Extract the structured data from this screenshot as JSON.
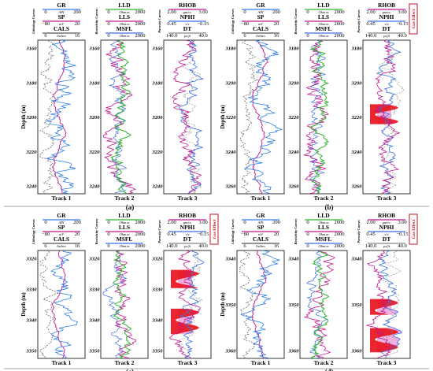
{
  "header_labels": {
    "gr": "GR",
    "api": "API",
    "sp": "SP",
    "mv": "mV",
    "cals": "CALS",
    "inches": "Inches",
    "lld": "LLD",
    "lls": "LLS",
    "msfl": "MSFL",
    "ohmm": "Ohm.m",
    "rhob": "RHOB",
    "gcm3": "gm/cc",
    "nphi": "NPHI",
    "vv": "v/v",
    "dt": "DT",
    "usft": "µs/ft",
    "lithology_curves": "Lithology Curves",
    "resistivity_curves": "Resistivity Curves",
    "porosity_curves": "Porosity Curves",
    "depth_axis": "Depth (m)",
    "gas_effect": "Gas Effect"
  },
  "ranges": {
    "gr": [
      "0",
      "200"
    ],
    "sp": [
      "−80",
      "20"
    ],
    "cals": [
      "6",
      "16"
    ],
    "res": [
      "0",
      "2000"
    ],
    "rhob": [
      "2.00",
      "3.00"
    ],
    "nphi": [
      "0.45",
      "−0.15"
    ],
    "dt": [
      "140.0",
      "40.0"
    ]
  },
  "panels": [
    {
      "id": "a",
      "caption": "(a)",
      "has_gas_label": false,
      "depth_ticks": [
        "3160",
        "3180",
        "3200",
        "3220",
        "3240"
      ],
      "track_labels": [
        "Track 1",
        "Track 2",
        "Track 3"
      ]
    },
    {
      "id": "b",
      "caption": "(b)",
      "has_gas_label": true,
      "depth_ticks": [
        "3180",
        "3200",
        "3220",
        "3240",
        "3260"
      ],
      "track_labels": [
        "Track 1",
        "Track 2",
        "Track 3"
      ]
    },
    {
      "id": "c",
      "caption": "(c)",
      "has_gas_label": true,
      "depth_ticks": [
        "3320",
        "3330",
        "3340",
        "3350"
      ],
      "track_labels": [
        "Track 1",
        "Track 2",
        "Track 3"
      ]
    },
    {
      "id": "d",
      "caption": "(d)",
      "has_gas_label": true,
      "depth_ticks": [
        "3340",
        "3350",
        "3360"
      ],
      "track_labels": [
        "Track 1",
        "Track 2",
        "Track 3"
      ]
    }
  ],
  "colors": {
    "gr": "#2f7ee8",
    "sp": "#c2188e",
    "cals": "#555555",
    "lld": "#2db32d",
    "lls": "#c2188e",
    "msfl": "#3a6fe0",
    "rhob": "#c2188e",
    "nphi": "#3a6fe0",
    "dt": "#888888",
    "gas_fill": "#e8101a",
    "gas_shade": "#e88fd0",
    "frame": "#000000",
    "gas_box": "#c0182a"
  }
}
